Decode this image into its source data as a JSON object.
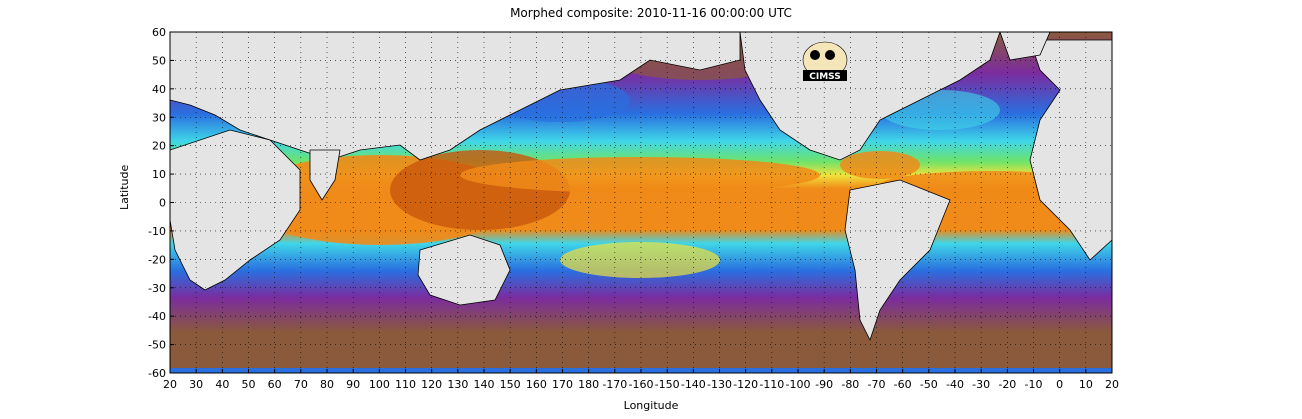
{
  "title": "Morphed composite: 2010-11-16 00:00:00 UTC",
  "xlabel": "Longitude",
  "ylabel": "Latitude",
  "logo_text": "CIMSS",
  "x_ticks": [
    "20",
    "30",
    "40",
    "50",
    "60",
    "70",
    "80",
    "90",
    "100",
    "110",
    "120",
    "130",
    "140",
    "150",
    "160",
    "170",
    "180",
    "-170",
    "-160",
    "-150",
    "-140",
    "-130",
    "-120",
    "-110",
    "-100",
    "-90",
    "-80",
    "-70",
    "-60",
    "-50",
    "-40",
    "-30",
    "-20",
    "-10",
    "0",
    "10",
    "20"
  ],
  "y_ticks": [
    "60",
    "50",
    "40",
    "30",
    "20",
    "10",
    "0",
    "-10",
    "-20",
    "-30",
    "-40",
    "-50",
    "-60"
  ],
  "colors": {
    "land": "#e4e4e4",
    "dry": "#8b5a3c",
    "low": "#7b2c9e",
    "blue": "#2a6fe0",
    "cyan": "#3fd6e8",
    "green": "#6ee36a",
    "yellow": "#f0e23a",
    "orange": "#f08a18",
    "deep": "#c8560c"
  }
}
